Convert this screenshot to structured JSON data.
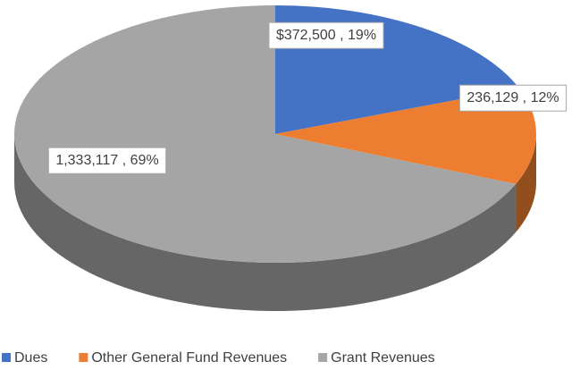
{
  "chart_data": {
    "type": "pie",
    "categories": [
      "Dues",
      "Other General Fund Revenues",
      "Grant Revenues"
    ],
    "values": [
      372500,
      236129,
      1333117
    ],
    "value_labels": [
      "$372,500 , 19%",
      "236,129 , 12%",
      "1,333,117 , 69%"
    ],
    "colors": [
      "#4472c4",
      "#ed7d31",
      "#a5a5a5"
    ],
    "legend": "bottom"
  }
}
